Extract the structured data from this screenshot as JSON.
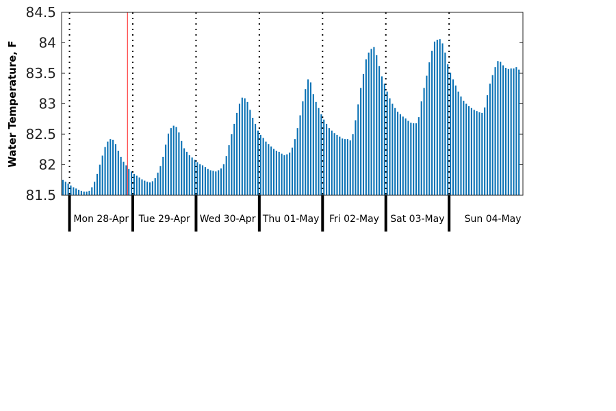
{
  "chart_data": {
    "type": "bar",
    "title": "",
    "xlabel": "",
    "ylabel": "Water Temperature, F",
    "ylim": [
      81.5,
      84.5
    ],
    "yticks": [
      "81.5",
      "82",
      "82.5",
      "83",
      "83.5",
      "84",
      "84.5"
    ],
    "grid": false,
    "bar_color": "#0b72b5",
    "marker_color": "#ff3b3b",
    "x_start": "2025-04-27T21:00",
    "x_end": "2025-05-05T04:00",
    "current_time_marker": "2025-04-28T22:00",
    "days": [
      {
        "label": "Mon 28-Apr",
        "start": "2025-04-28T00:00"
      },
      {
        "label": "Tue 29-Apr",
        "start": "2025-04-29T00:00"
      },
      {
        "label": "Wed 30-Apr",
        "start": "2025-04-30T00:00"
      },
      {
        "label": "Thu 01-May",
        "start": "2025-05-01T00:00"
      },
      {
        "label": "Fri 02-May",
        "start": "2025-05-02T00:00"
      },
      {
        "label": "Sat 03-May",
        "start": "2025-05-03T00:00"
      },
      {
        "label": "Sun 04-May",
        "start": "2025-05-04T00:00"
      }
    ],
    "series": [
      {
        "interval_hours": 1,
        "values": [
          81.75,
          81.72,
          81.69,
          81.66,
          81.63,
          81.61,
          81.59,
          81.57,
          81.56,
          81.56,
          81.57,
          81.63,
          81.72,
          81.85,
          82.0,
          82.15,
          82.29,
          82.38,
          82.42,
          82.41,
          82.34,
          82.23,
          82.13,
          82.05,
          81.99,
          81.93,
          81.89,
          81.85,
          81.82,
          81.79,
          81.76,
          81.74,
          81.72,
          81.71,
          81.73,
          81.78,
          81.87,
          81.98,
          82.13,
          82.33,
          82.51,
          82.6,
          82.64,
          82.62,
          82.53,
          82.39,
          82.27,
          82.21,
          82.16,
          82.12,
          82.08,
          82.04,
          82.01,
          81.99,
          81.96,
          81.93,
          81.91,
          81.9,
          81.89,
          81.91,
          81.94,
          82.01,
          82.14,
          82.32,
          82.5,
          82.67,
          82.85,
          83.0,
          83.1,
          83.09,
          83.03,
          82.9,
          82.77,
          82.67,
          82.56,
          82.49,
          82.44,
          82.38,
          82.34,
          82.3,
          82.26,
          82.23,
          82.21,
          82.18,
          82.16,
          82.17,
          82.2,
          82.28,
          82.42,
          82.6,
          82.81,
          83.04,
          83.24,
          83.4,
          83.35,
          83.16,
          83.03,
          82.93,
          82.83,
          82.74,
          82.67,
          82.6,
          82.56,
          82.52,
          82.49,
          82.46,
          82.43,
          82.42,
          82.42,
          82.4,
          82.5,
          82.73,
          82.99,
          83.26,
          83.49,
          83.73,
          83.84,
          83.9,
          83.93,
          83.8,
          83.62,
          83.45,
          83.33,
          83.2,
          83.09,
          83.0,
          82.93,
          82.87,
          82.83,
          82.79,
          82.76,
          82.72,
          82.69,
          82.68,
          82.68,
          82.78,
          83.04,
          83.26,
          83.46,
          83.68,
          83.87,
          84.02,
          84.05,
          84.06,
          83.99,
          83.84,
          83.65,
          83.51,
          83.4,
          83.3,
          83.2,
          83.12,
          83.05,
          83.0,
          82.96,
          82.93,
          82.9,
          82.88,
          82.86,
          82.85,
          82.94,
          83.14,
          83.33,
          83.47,
          83.6,
          83.7,
          83.69,
          83.63,
          83.59,
          83.57,
          83.58,
          83.58,
          83.6,
          83.56
        ]
      }
    ]
  }
}
